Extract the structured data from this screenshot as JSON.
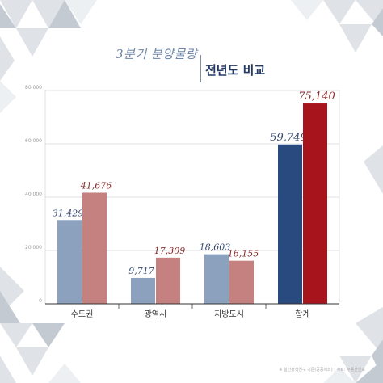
{
  "header": {
    "title_script": "3분기 분양물량",
    "title_main": "전년도 비교"
  },
  "footnote": "※ 철인정책연구 기준(공공제외) | 자료: 부동산인포",
  "colors": {
    "prev_regional": "#8ba1bd",
    "curr_regional": "#c58180",
    "prev_total": "#284a7e",
    "curr_total": "#a8141c",
    "prev_label": "#33476e",
    "curr_label": "#8a2a2c"
  },
  "chart_data": {
    "type": "bar",
    "categories": [
      "수도권",
      "광역시",
      "지방도시",
      "합계"
    ],
    "series": [
      {
        "values": [
          31429,
          9717,
          18603,
          59749
        ]
      },
      {
        "values": [
          41676,
          17309,
          16155,
          75140
        ]
      }
    ],
    "data_labels": [
      [
        "31,429",
        "9,717",
        "18,603",
        "59,749"
      ],
      [
        "41,676",
        "17,309",
        "16,155",
        "75,140"
      ]
    ],
    "yticks": [
      "0",
      "20,000",
      "40,000",
      "60,000",
      "80,000"
    ],
    "ylim": [
      0,
      80000
    ],
    "grid": true,
    "legend": "none"
  }
}
